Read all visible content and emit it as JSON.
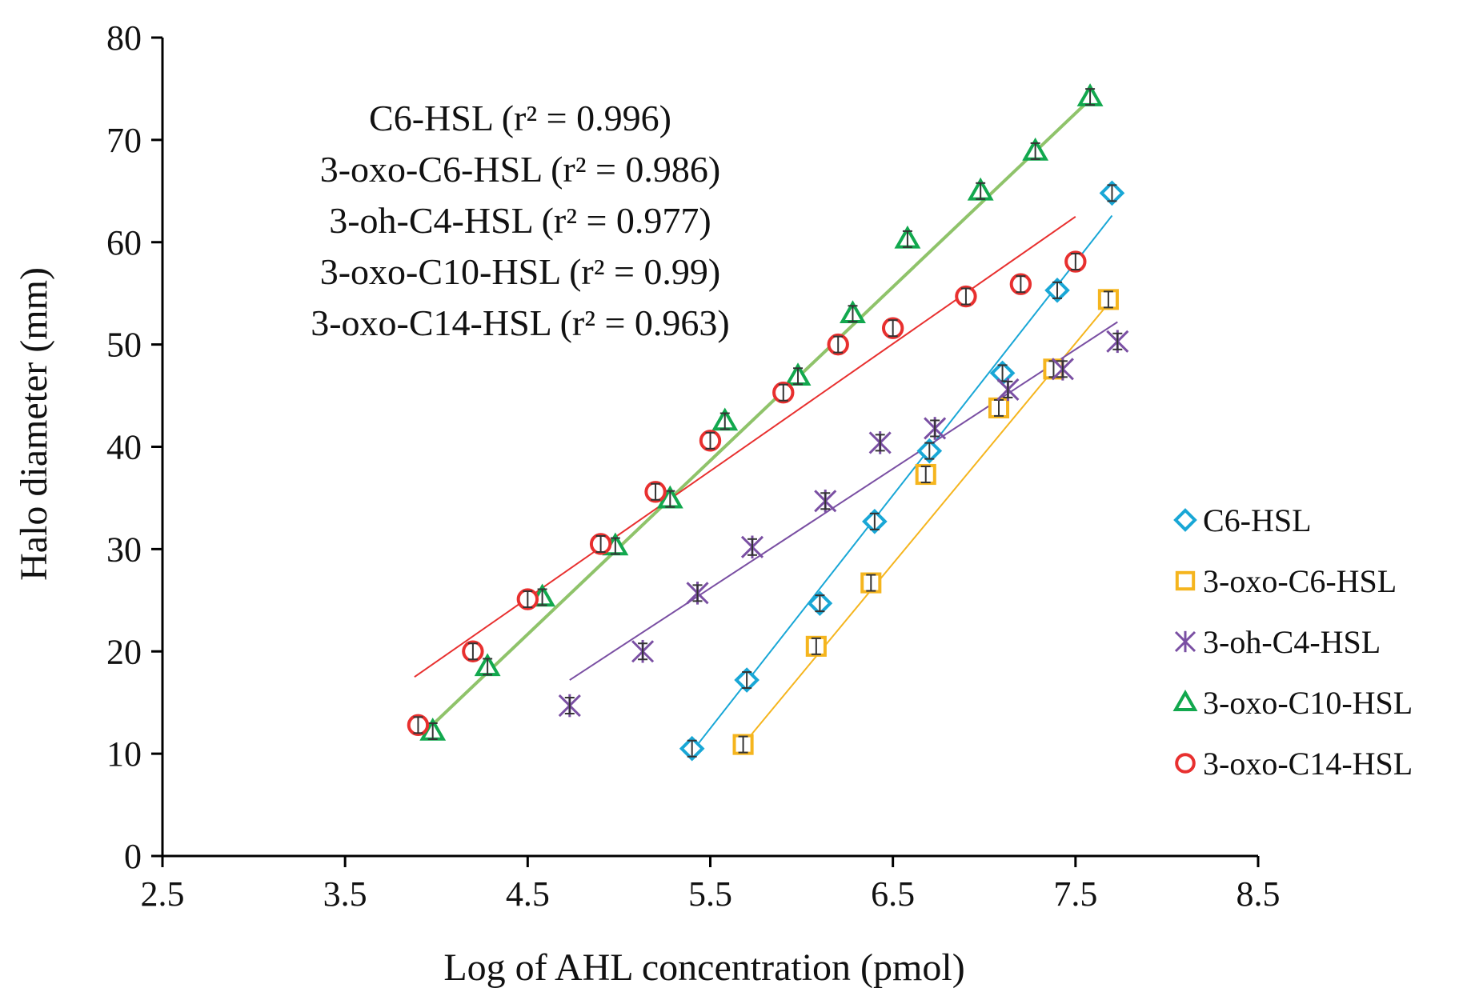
{
  "chart_data": {
    "type": "scatter",
    "title": "",
    "xlabel": "Log of AHL concentration (pmol)",
    "ylabel": "Halo diameter (mm)",
    "xlim": [
      2.5,
      8.5
    ],
    "ylim": [
      0,
      80
    ],
    "x_ticks": [
      "2.5",
      "3.5",
      "4.5",
      "5.5",
      "6.5",
      "7.5",
      "8.5"
    ],
    "y_ticks": [
      "0",
      "10",
      "20",
      "30",
      "40",
      "50",
      "60",
      "70",
      "80"
    ],
    "grid": false,
    "legend_position": "right",
    "annotations": [
      "C6-HSL (r² = 0.996)",
      "3-oxo-C6-HSL (r² = 0.986)",
      "3-oh-C4-HSL (r² = 0.977)",
      "3-oxo-C10-HSL (r² = 0.99)",
      "3-oxo-C14-HSL (r² = 0.963)"
    ],
    "series": [
      {
        "name": "C6-HSL",
        "marker": "diamond",
        "color": "#19a7d6",
        "x": [
          5.4,
          5.7,
          6.1,
          6.4,
          6.7,
          7.1,
          7.4,
          7.7
        ],
        "y": [
          10.5,
          17.2,
          24.7,
          32.7,
          39.6,
          47.2,
          55.3,
          64.8
        ],
        "fit": [
          [
            5.4,
            10.2
          ],
          [
            7.7,
            62.6
          ]
        ]
      },
      {
        "name": "3-oxo-C6-HSL",
        "marker": "square",
        "color": "#f5b51e",
        "x": [
          5.68,
          6.08,
          6.38,
          6.68,
          7.08,
          7.38,
          7.68
        ],
        "y": [
          10.9,
          20.5,
          26.7,
          37.3,
          43.8,
          47.6,
          54.4
        ],
        "fit": [
          [
            5.68,
            10.9
          ],
          [
            7.68,
            54.0
          ]
        ]
      },
      {
        "name": "3-oh-C4-HSL",
        "marker": "asterisk",
        "color": "#7a4fa3",
        "x": [
          4.73,
          5.13,
          5.43,
          5.73,
          6.13,
          6.43,
          6.73,
          7.13,
          7.43,
          7.73
        ],
        "y": [
          14.7,
          20.0,
          25.7,
          30.2,
          34.7,
          40.4,
          41.8,
          45.6,
          47.6,
          50.3
        ],
        "fit": [
          [
            4.73,
            17.2
          ],
          [
            7.73,
            52.2
          ]
        ]
      },
      {
        "name": "3-oxo-C10-HSL",
        "marker": "triangle",
        "color": "#12a84e",
        "x": [
          3.98,
          4.28,
          4.58,
          4.98,
          5.28,
          5.58,
          5.98,
          6.28,
          6.58,
          6.98,
          7.28,
          7.58
        ],
        "y": [
          12.2,
          18.5,
          25.3,
          30.3,
          34.9,
          42.5,
          46.9,
          53.0,
          60.3,
          65.0,
          68.9,
          74.2
        ],
        "fit": [
          [
            3.93,
            12.0
          ],
          [
            7.6,
            74.3
          ]
        ]
      },
      {
        "name": "3-oxo-C14-HSL",
        "marker": "circle",
        "color": "#e8302f",
        "x": [
          3.9,
          4.2,
          4.5,
          4.9,
          5.2,
          5.5,
          5.9,
          6.2,
          6.5,
          6.9,
          7.2,
          7.5
        ],
        "y": [
          12.8,
          20.0,
          25.1,
          30.5,
          35.6,
          40.6,
          45.3,
          50.0,
          51.6,
          54.7,
          55.9,
          58.1
        ],
        "fit": [
          [
            3.88,
            17.5
          ],
          [
            7.5,
            62.5
          ]
        ]
      }
    ]
  }
}
